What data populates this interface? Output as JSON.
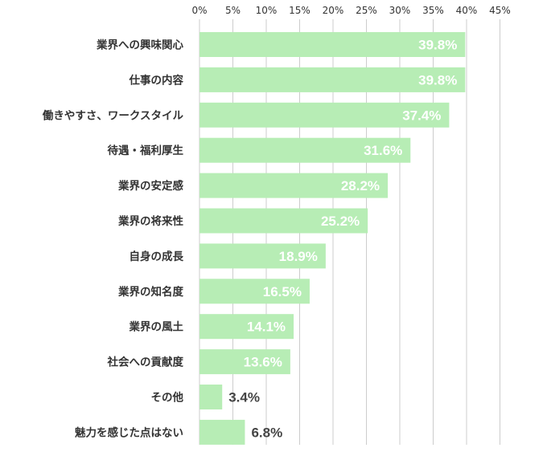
{
  "chart_data": {
    "type": "bar",
    "orientation": "horizontal",
    "title": "",
    "xlabel": "",
    "ylabel": "",
    "xlim": [
      0,
      45
    ],
    "ticks": [
      0,
      5,
      10,
      15,
      20,
      25,
      30,
      35,
      40,
      45
    ],
    "tick_labels": [
      "0%",
      "5%",
      "10%",
      "15%",
      "20%",
      "25%",
      "30%",
      "35%",
      "40%",
      "45%"
    ],
    "grid": true,
    "bar_color": "#b7edb5",
    "categories": [
      "業界への興味関心",
      "仕事の内容",
      "働きやすさ、ワークスタイル",
      "待遇・福利厚生",
      "業界の安定感",
      "業界の将来性",
      "自身の成長",
      "業界の知名度",
      "業界の風土",
      "社会への貢献度",
      "その他",
      "魅力を感じた点はない"
    ],
    "values": [
      39.8,
      39.8,
      37.4,
      31.6,
      28.2,
      25.2,
      18.9,
      16.5,
      14.1,
      13.6,
      3.4,
      6.8
    ],
    "value_labels": [
      "39.8%",
      "39.8%",
      "37.4%",
      "31.6%",
      "28.2%",
      "25.2%",
      "18.9%",
      "16.5%",
      "14.1%",
      "13.6%",
      "3.4%",
      "6.8%"
    ]
  }
}
